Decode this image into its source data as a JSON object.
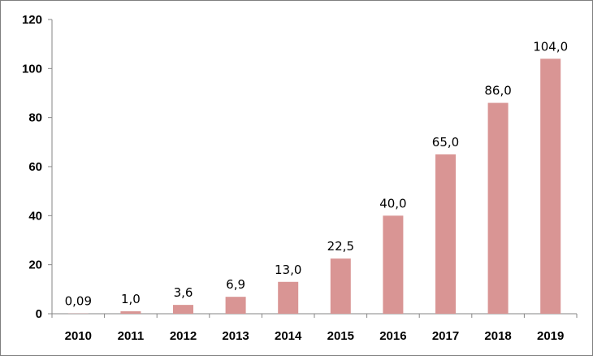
{
  "chart_data": {
    "type": "bar",
    "categories": [
      "2010",
      "2011",
      "2012",
      "2013",
      "2014",
      "2015",
      "2016",
      "2017",
      "2018",
      "2019"
    ],
    "values": [
      0.09,
      1.0,
      3.6,
      6.9,
      13.0,
      22.5,
      40.0,
      65.0,
      86.0,
      104.0
    ],
    "data_labels": [
      "0,09",
      "1,0",
      "3,6",
      "6,9",
      "13,0",
      "22,5",
      "40,0",
      "65,0",
      "86,0",
      "104,0"
    ],
    "title": "",
    "xlabel": "",
    "ylabel": "",
    "ylim": [
      0,
      120
    ],
    "yticks": [
      0,
      20,
      40,
      60,
      80,
      100,
      120
    ],
    "ytick_labels": [
      "0",
      "20",
      "40",
      "60",
      "80",
      "100",
      "120"
    ],
    "grid": false,
    "legend": "none",
    "bar_color": "#d99594"
  }
}
